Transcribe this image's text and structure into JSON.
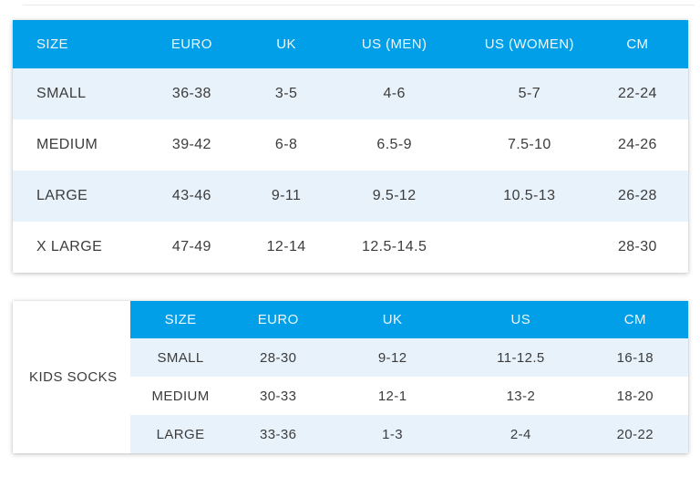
{
  "colors": {
    "header_blue": "#009FE8",
    "row_alt_blue": "#E8F2FB",
    "body_text": "#3C3C3C",
    "header_text": "#FFFFFF",
    "page_background": "#FFFFFF"
  },
  "kids_section": {
    "label": "KIDS SOCKS"
  },
  "chart_data": [
    {
      "type": "table",
      "title": "Adult sock size chart",
      "columns": [
        "SIZE",
        "EURO",
        "UK",
        "US (MEN)",
        "US (WOMEN)",
        "CM"
      ],
      "rows": [
        [
          "SMALL",
          "36-38",
          "3-5",
          "4-6",
          "5-7",
          "22-24"
        ],
        [
          "MEDIUM",
          "39-42",
          "6-8",
          "6.5-9",
          "7.5-10",
          "24-26"
        ],
        [
          "LARGE",
          "43-46",
          "9-11",
          "9.5-12",
          "10.5-13",
          "26-28"
        ],
        [
          "X LARGE",
          "47-49",
          "12-14",
          "12.5-14.5",
          "",
          "28-30"
        ]
      ],
      "layout_hints": {
        "header_background": "#009FE8",
        "banding": "rows 1 and 3 tinted #E8F2FB, rows 2 and 4 white",
        "first_column_align": "left",
        "other_columns_align": "center"
      }
    },
    {
      "type": "table",
      "title": "Kids socks size chart",
      "row_group_label": "KIDS SOCKS",
      "columns": [
        "SIZE",
        "EURO",
        "UK",
        "US",
        "CM"
      ],
      "rows": [
        [
          "SMALL",
          "28-30",
          "9-12",
          "11-12.5",
          "16-18"
        ],
        [
          "MEDIUM",
          "30-33",
          "12-1",
          "13-2",
          "18-20"
        ],
        [
          "LARGE",
          "33-36",
          "1-3",
          "2-4",
          "20-22"
        ]
      ],
      "layout_hints": {
        "header_background": "#009FE8",
        "banding": "rows 1 and 3 tinted #E8F2FB, row 2 white",
        "all_columns_align": "center",
        "group_label_position": "left cell spanning table height, vertically centered"
      }
    }
  ]
}
